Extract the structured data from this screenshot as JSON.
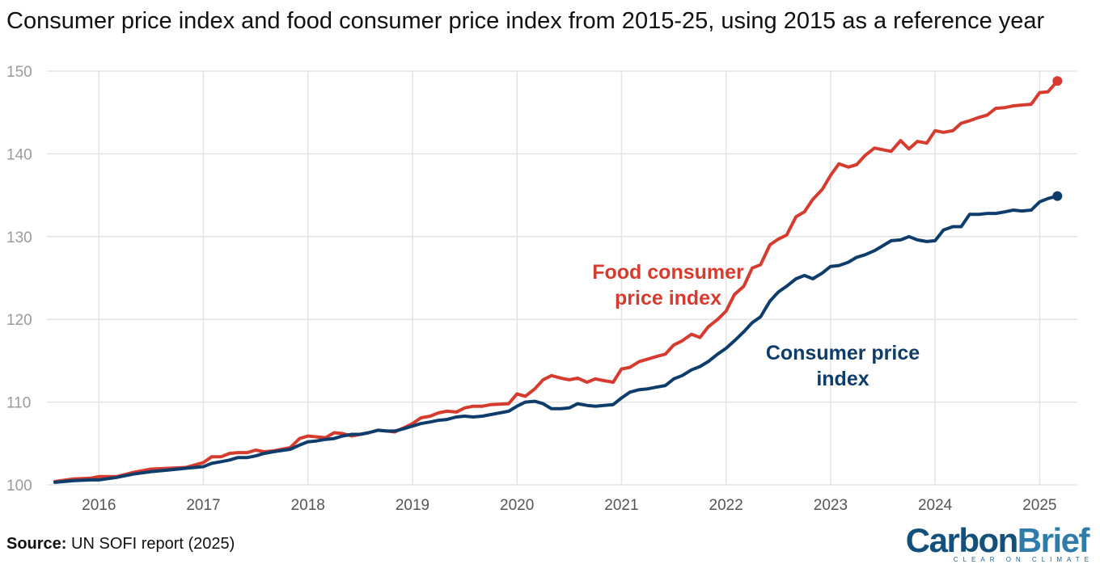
{
  "title": "Consumer price index and food consumer price index from 2015-25, using 2015 as a reference year",
  "source": {
    "label": "Source:",
    "text": "UN SOFI report (2025)"
  },
  "logo": {
    "part1": "Carbon",
    "part2": "Brief",
    "tagline": "CLEAR ON CLIMATE"
  },
  "colors": {
    "food": "#d63b2f",
    "cpi": "#0f3d6b",
    "grid": "#e3e3e3"
  },
  "chart_data": {
    "type": "line",
    "title": "Consumer price index and food consumer price index from 2015-25, using 2015 as a reference year",
    "xlabel": "",
    "ylabel": "",
    "ylim": [
      100,
      150
    ],
    "xlim": [
      2015.58,
      2025.33
    ],
    "grid": true,
    "y_ticks": [
      100,
      110,
      120,
      130,
      140,
      150
    ],
    "x_ticks": [
      2016,
      2017,
      2018,
      2019,
      2020,
      2021,
      2022,
      2023,
      2024,
      2025
    ],
    "series": [
      {
        "name": "Food consumer price index",
        "label_lines": [
          "Food consumer",
          "price index"
        ],
        "color": "#d63b2f",
        "x": [
          2015.58,
          2015.75,
          2015.92,
          2016.0,
          2016.17,
          2016.33,
          2016.5,
          2016.67,
          2016.83,
          2017.0,
          2017.08,
          2017.17,
          2017.25,
          2017.33,
          2017.42,
          2017.5,
          2017.58,
          2017.67,
          2017.83,
          2017.92,
          2018.0,
          2018.08,
          2018.17,
          2018.25,
          2018.33,
          2018.42,
          2018.5,
          2018.58,
          2018.67,
          2018.75,
          2018.83,
          2018.92,
          2019.0,
          2019.08,
          2019.17,
          2019.25,
          2019.33,
          2019.42,
          2019.5,
          2019.58,
          2019.67,
          2019.75,
          2019.92,
          2020.0,
          2020.08,
          2020.17,
          2020.25,
          2020.33,
          2020.42,
          2020.5,
          2020.58,
          2020.67,
          2020.75,
          2020.83,
          2020.92,
          2021.0,
          2021.08,
          2021.17,
          2021.25,
          2021.33,
          2021.42,
          2021.5,
          2021.58,
          2021.67,
          2021.75,
          2021.83,
          2021.92,
          2022.0,
          2022.08,
          2022.17,
          2022.25,
          2022.33,
          2022.42,
          2022.5,
          2022.58,
          2022.67,
          2022.75,
          2022.83,
          2022.92,
          2023.0,
          2023.08,
          2023.17,
          2023.25,
          2023.33,
          2023.42,
          2023.5,
          2023.58,
          2023.67,
          2023.75,
          2023.83,
          2023.92,
          2024.0,
          2024.08,
          2024.17,
          2024.25,
          2024.33,
          2024.42,
          2024.5,
          2024.58,
          2024.67,
          2024.75,
          2024.83,
          2024.92,
          2025.0,
          2025.08,
          2025.17
        ],
        "values": [
          100.4,
          100.7,
          100.8,
          101.0,
          101.0,
          101.5,
          101.9,
          102.0,
          102.1,
          102.7,
          103.4,
          103.4,
          103.8,
          103.9,
          103.9,
          104.2,
          104.0,
          104.1,
          104.5,
          105.6,
          105.9,
          105.8,
          105.7,
          106.3,
          106.2,
          105.9,
          106.1,
          106.3,
          106.6,
          106.5,
          106.4,
          106.9,
          107.4,
          108.1,
          108.3,
          108.7,
          108.9,
          108.8,
          109.3,
          109.5,
          109.5,
          109.7,
          109.8,
          111.0,
          110.7,
          111.6,
          112.7,
          113.2,
          112.9,
          112.7,
          112.9,
          112.4,
          112.8,
          112.6,
          112.4,
          114.0,
          114.2,
          114.9,
          115.2,
          115.5,
          115.8,
          116.9,
          117.4,
          118.2,
          117.8,
          119.1,
          120.0,
          121.0,
          123.0,
          124.0,
          126.2,
          126.6,
          129.0,
          129.7,
          130.2,
          132.4,
          133.0,
          134.5,
          135.7,
          137.4,
          138.8,
          138.4,
          138.7,
          139.8,
          140.7,
          140.5,
          140.3,
          141.6,
          140.6,
          141.5,
          141.3,
          142.8,
          142.6,
          142.8,
          143.7,
          144.0,
          144.4,
          144.7,
          145.5,
          145.6,
          145.8,
          145.9,
          146.0,
          147.4,
          147.5,
          148.8
        ]
      },
      {
        "name": "Consumer price index",
        "label_lines": [
          "Consumer price",
          "index"
        ],
        "color": "#0f3d6b",
        "x": [
          2015.58,
          2015.75,
          2015.92,
          2016.0,
          2016.17,
          2016.33,
          2016.5,
          2016.67,
          2016.83,
          2017.0,
          2017.08,
          2017.17,
          2017.25,
          2017.33,
          2017.42,
          2017.5,
          2017.58,
          2017.67,
          2017.83,
          2017.92,
          2018.0,
          2018.08,
          2018.17,
          2018.25,
          2018.33,
          2018.42,
          2018.5,
          2018.58,
          2018.67,
          2018.75,
          2018.83,
          2018.92,
          2019.0,
          2019.08,
          2019.17,
          2019.25,
          2019.33,
          2019.42,
          2019.5,
          2019.58,
          2019.67,
          2019.75,
          2019.92,
          2020.0,
          2020.08,
          2020.17,
          2020.25,
          2020.33,
          2020.42,
          2020.5,
          2020.58,
          2020.67,
          2020.75,
          2020.83,
          2020.92,
          2021.0,
          2021.08,
          2021.17,
          2021.25,
          2021.33,
          2021.42,
          2021.5,
          2021.58,
          2021.67,
          2021.75,
          2021.83,
          2021.92,
          2022.0,
          2022.08,
          2022.17,
          2022.25,
          2022.33,
          2022.42,
          2022.5,
          2022.58,
          2022.67,
          2022.75,
          2022.83,
          2022.92,
          2023.0,
          2023.08,
          2023.17,
          2023.25,
          2023.33,
          2023.42,
          2023.5,
          2023.58,
          2023.67,
          2023.75,
          2023.83,
          2023.92,
          2024.0,
          2024.08,
          2024.17,
          2024.25,
          2024.33,
          2024.42,
          2024.5,
          2024.58,
          2024.67,
          2024.75,
          2024.83,
          2024.92,
          2025.0,
          2025.08,
          2025.17
        ],
        "values": [
          100.3,
          100.5,
          100.6,
          100.6,
          100.9,
          101.3,
          101.6,
          101.8,
          102.0,
          102.2,
          102.6,
          102.8,
          103.0,
          103.3,
          103.3,
          103.5,
          103.8,
          104.0,
          104.3,
          104.8,
          105.2,
          105.3,
          105.5,
          105.6,
          105.9,
          106.1,
          106.1,
          106.3,
          106.6,
          106.5,
          106.5,
          106.8,
          107.1,
          107.4,
          107.6,
          107.8,
          107.9,
          108.2,
          108.3,
          108.2,
          108.3,
          108.5,
          108.9,
          109.5,
          110.0,
          110.1,
          109.8,
          109.2,
          109.2,
          109.3,
          109.8,
          109.6,
          109.5,
          109.6,
          109.7,
          110.5,
          111.2,
          111.5,
          111.6,
          111.8,
          112.0,
          112.8,
          113.2,
          113.9,
          114.3,
          114.9,
          115.8,
          116.5,
          117.4,
          118.5,
          119.6,
          120.3,
          122.2,
          123.3,
          124.0,
          124.9,
          125.3,
          124.9,
          125.6,
          126.4,
          126.5,
          126.9,
          127.5,
          127.8,
          128.3,
          128.9,
          129.5,
          129.6,
          130.0,
          129.6,
          129.4,
          129.5,
          130.8,
          131.2,
          131.2,
          132.7,
          132.7,
          132.8,
          132.8,
          133.0,
          133.2,
          133.1,
          133.2,
          134.2,
          134.6,
          134.9
        ]
      }
    ]
  }
}
